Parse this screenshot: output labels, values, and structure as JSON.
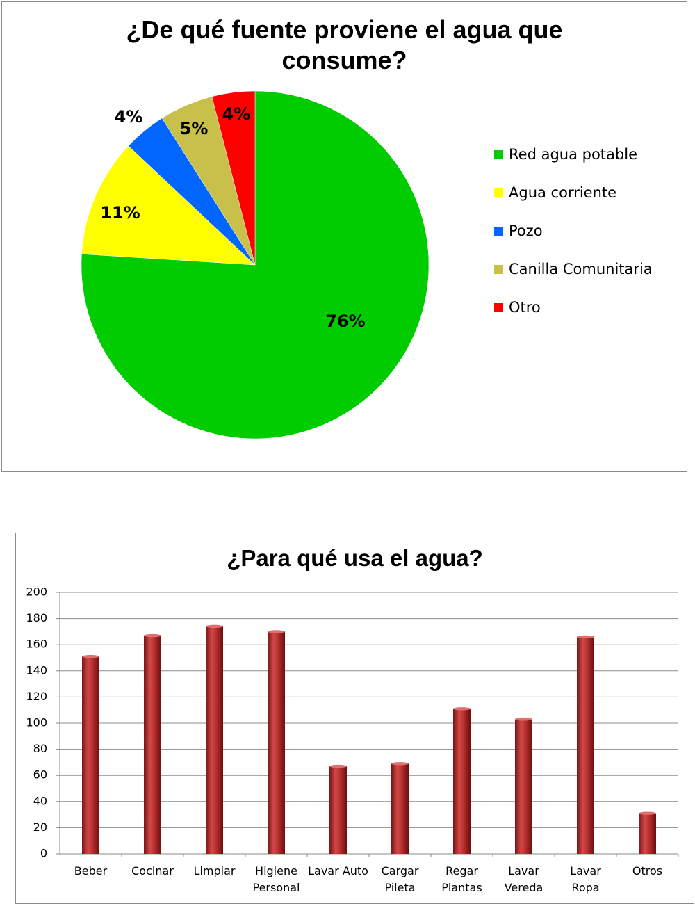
{
  "chart_data": [
    {
      "type": "pie",
      "title": "¿De qué fuente proviene el agua que\nconsume?",
      "legend_position": "right",
      "slices": [
        {
          "name": "Red agua potable",
          "value": 76,
          "label": "76%",
          "color": "#00cc00"
        },
        {
          "name": "Agua corriente",
          "value": 11,
          "label": "11%",
          "color": "#ffff00"
        },
        {
          "name": "Pozo",
          "value": 4,
          "label": "4%",
          "color": "#0066ff"
        },
        {
          "name": "Canilla Comunitaria",
          "value": 5,
          "label": "5%",
          "color": "#c8c04a"
        },
        {
          "name": "Otro",
          "value": 4,
          "label": "4%",
          "color": "#ff0000"
        }
      ]
    },
    {
      "type": "bar",
      "title": "¿Para qué usa el agua?",
      "categories": [
        "Beber",
        "Cocinar",
        "Limpiar",
        "Higiene\nPersonal",
        "Lavar Auto",
        "Cargar\nPileta",
        "Regar\nPlantas",
        "Lavar\nVereda",
        "Lavar\nRopa",
        "Otros"
      ],
      "values": [
        151,
        167,
        174,
        170,
        67,
        69,
        111,
        103,
        166,
        31
      ],
      "ylim": [
        0,
        200
      ],
      "yticks": [
        0,
        20,
        40,
        60,
        80,
        100,
        120,
        140,
        160,
        180,
        200
      ],
      "grid": true,
      "bar_color": "#b02828",
      "xlabel": "",
      "ylabel": ""
    }
  ]
}
